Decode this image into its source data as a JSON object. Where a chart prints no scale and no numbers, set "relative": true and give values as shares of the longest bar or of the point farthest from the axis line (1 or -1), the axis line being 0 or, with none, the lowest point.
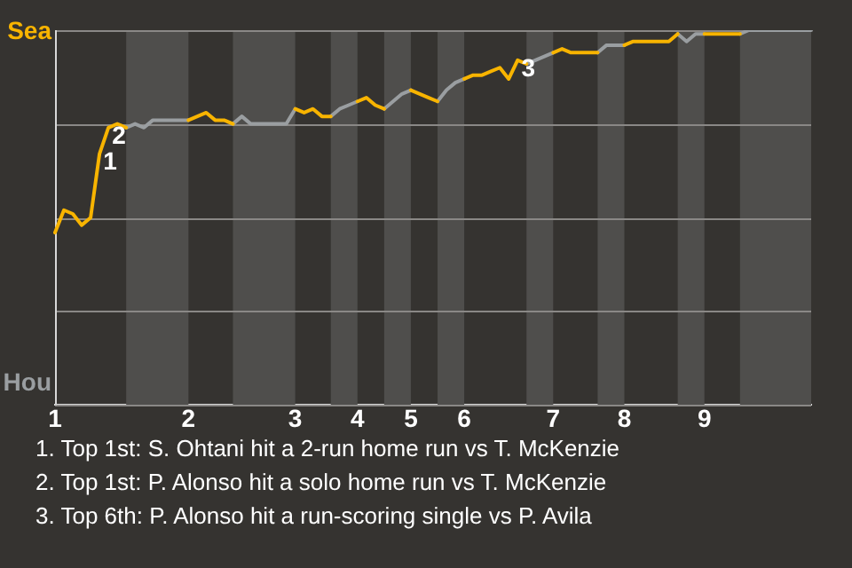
{
  "chart_data": {
    "type": "line",
    "relative": true,
    "categories": [
      "1",
      null,
      null,
      null,
      null,
      null,
      null,
      null,
      null,
      null,
      null,
      null,
      null,
      null,
      null,
      "2",
      null,
      null,
      null,
      null,
      null,
      null,
      null,
      null,
      null,
      null,
      null,
      "3",
      null,
      null,
      null,
      null,
      null,
      null,
      "4",
      null,
      null,
      null,
      null,
      null,
      "5",
      null,
      null,
      null,
      null,
      null,
      "6",
      null,
      null,
      null,
      null,
      null,
      null,
      null,
      null,
      null,
      "7",
      null,
      null,
      null,
      null,
      null,
      null,
      null,
      "8",
      null,
      null,
      null,
      null,
      null,
      null,
      null,
      null,
      "9",
      null,
      null,
      null,
      null,
      null,
      null,
      null,
      null,
      null,
      null,
      null,
      null
    ],
    "series": [
      {
        "color": "#f8b400",
        "values": [
          0.46,
          0.52,
          0.51,
          0.48,
          0.5,
          0.67,
          0.74,
          0.75,
          0.74,
          null,
          null,
          null,
          null,
          null,
          null,
          0.76,
          0.77,
          0.78,
          0.76,
          0.76,
          0.75,
          null,
          null,
          null,
          null,
          null,
          null,
          0.79,
          0.78,
          0.79,
          0.77,
          0.77,
          null,
          null,
          0.81,
          0.82,
          0.8,
          0.79,
          null,
          null,
          0.84,
          0.83,
          0.82,
          0.81,
          null,
          null,
          0.87,
          0.88,
          0.88,
          0.89,
          0.9,
          0.87,
          0.92,
          0.91,
          null,
          null,
          0.94,
          0.95,
          0.94,
          0.94,
          0.94,
          0.94,
          null,
          null,
          0.96,
          0.97,
          0.97,
          0.97,
          0.97,
          0.97,
          0.99,
          null,
          null,
          0.99,
          0.99,
          0.99,
          0.99,
          0.99,
          null,
          null,
          null,
          null,
          null,
          null,
          null,
          null
        ]
      },
      {
        "color": "#9a9ea1",
        "values": [
          null,
          null,
          null,
          null,
          null,
          null,
          null,
          null,
          0.74,
          0.75,
          0.74,
          0.76,
          0.76,
          0.76,
          0.76,
          0.76,
          null,
          null,
          null,
          null,
          0.75,
          0.77,
          0.75,
          0.75,
          0.75,
          0.75,
          0.75,
          0.79,
          null,
          null,
          null,
          0.77,
          0.79,
          0.8,
          0.81,
          null,
          null,
          0.79,
          0.81,
          0.83,
          0.84,
          null,
          null,
          0.81,
          0.84,
          0.86,
          0.87,
          null,
          null,
          null,
          null,
          null,
          null,
          0.91,
          0.92,
          0.93,
          0.94,
          null,
          null,
          null,
          null,
          0.94,
          0.96,
          0.96,
          0.96,
          null,
          null,
          null,
          null,
          null,
          0.99,
          0.97,
          0.99,
          0.99,
          null,
          null,
          null,
          0.99,
          1,
          1,
          1,
          1,
          1,
          1,
          1,
          1
        ]
      }
    ],
    "annotations": [
      "Sea",
      "Hou",
      {
        "text": "1",
        "y": 0.67
      },
      {
        "text": "2",
        "y": 0.74
      },
      {
        "text": "3",
        "y": 0.92
      },
      "1. Top 1st: S. Ohtani hit a 2-run home run vs T. McKenzie",
      "2. Top 1st: P. Alonso hit a solo home run vs T. McKenzie",
      "3. Top 6th: P. Alonso hit a run-scoring single vs P. Avila"
    ],
    "grid": "y",
    "legend": false,
    "marker": "none"
  }
}
